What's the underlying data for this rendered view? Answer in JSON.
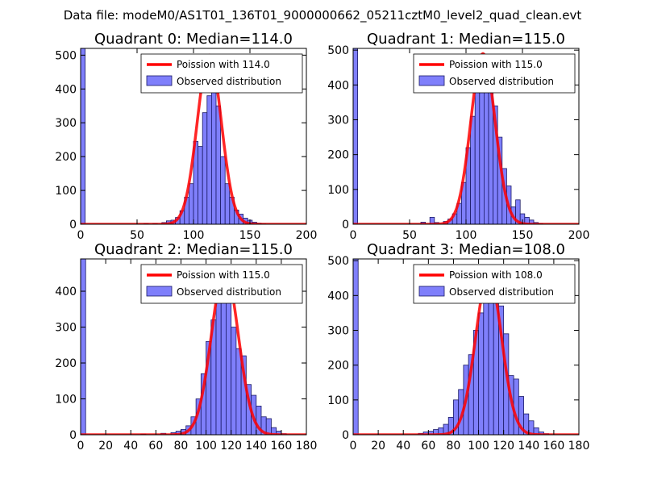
{
  "figure": {
    "suptitle": "Data file: modeM0/AS1T01_136T01_9000000662_05211cztM0_level2_quad_clean.evt"
  },
  "colors": {
    "bar_fill": "#7f7ffb",
    "bar_stroke": "#1a1a66",
    "curve": "#ff0000",
    "axis": "#000000"
  },
  "chart_data": [
    {
      "type": "bar",
      "title": "Quadrant 0: Median=114.0",
      "median": 114.0,
      "xlim": [
        0,
        200
      ],
      "ylim": [
        0,
        520
      ],
      "xticks": [
        0,
        50,
        100,
        150,
        200
      ],
      "yticks": [
        0,
        100,
        200,
        300,
        400,
        500
      ],
      "bin_width": 4,
      "bins": [
        0,
        56,
        64,
        72,
        76,
        80,
        84,
        88,
        92,
        96,
        100,
        104,
        108,
        112,
        116,
        120,
        124,
        128,
        132,
        136,
        140,
        144,
        148,
        152,
        156,
        160
      ],
      "counts": [
        520,
        2,
        2,
        5,
        10,
        12,
        20,
        40,
        80,
        120,
        245,
        230,
        330,
        380,
        460,
        350,
        200,
        120,
        80,
        42,
        30,
        18,
        12,
        6,
        3,
        1
      ],
      "legend": [
        "Poission with 114.0",
        "Observed distribution"
      ],
      "curve_label": "Poission with 114.0",
      "curve_peak": 500
    },
    {
      "type": "bar",
      "title": "Quadrant 1: Median=115.0",
      "median": 115.0,
      "xlim": [
        0,
        200
      ],
      "ylim": [
        0,
        505
      ],
      "xticks": [
        0,
        50,
        100,
        150,
        200
      ],
      "yticks": [
        0,
        100,
        200,
        300,
        400,
        500
      ],
      "bin_width": 4,
      "bins": [
        0,
        60,
        68,
        72,
        80,
        84,
        88,
        92,
        96,
        100,
        104,
        108,
        112,
        116,
        120,
        124,
        128,
        132,
        136,
        140,
        144,
        148,
        152,
        156,
        160,
        164
      ],
      "counts": [
        505,
        6,
        20,
        5,
        8,
        15,
        30,
        60,
        120,
        220,
        310,
        380,
        410,
        450,
        470,
        340,
        250,
        160,
        110,
        50,
        70,
        30,
        20,
        12,
        5,
        2
      ],
      "legend": [
        "Poission with 115.0",
        "Observed distribution"
      ],
      "curve_label": "Poission with 115.0",
      "curve_peak": 490
    },
    {
      "type": "bar",
      "title": "Quadrant 2: Median=115.0",
      "median": 115.0,
      "xlim": [
        0,
        180
      ],
      "ylim": [
        0,
        490
      ],
      "xticks": [
        0,
        20,
        40,
        60,
        80,
        100,
        120,
        140,
        160,
        180
      ],
      "yticks": [
        0,
        100,
        200,
        300,
        400
      ],
      "bin_width": 4,
      "bins": [
        0,
        48,
        64,
        72,
        76,
        80,
        84,
        88,
        92,
        96,
        100,
        104,
        108,
        112,
        116,
        120,
        124,
        128,
        132,
        136,
        140,
        144,
        148,
        152,
        156,
        160
      ],
      "counts": [
        490,
        2,
        4,
        6,
        10,
        15,
        25,
        50,
        100,
        170,
        260,
        320,
        390,
        430,
        450,
        300,
        240,
        220,
        140,
        110,
        80,
        50,
        45,
        20,
        10,
        3
      ],
      "legend": [
        "Poission with 115.0",
        "Observed distribution"
      ],
      "curve_label": "Poission with 115.0",
      "curve_peak": 460
    },
    {
      "type": "bar",
      "title": "Quadrant 3: Median=108.0",
      "median": 108.0,
      "xlim": [
        0,
        180
      ],
      "ylim": [
        0,
        505
      ],
      "xticks": [
        0,
        20,
        40,
        60,
        80,
        100,
        120,
        140,
        160,
        180
      ],
      "yticks": [
        0,
        100,
        200,
        300,
        400,
        500
      ],
      "bin_width": 4,
      "bins": [
        0,
        52,
        56,
        60,
        64,
        68,
        72,
        76,
        80,
        84,
        88,
        92,
        96,
        100,
        104,
        108,
        112,
        116,
        120,
        124,
        128,
        132,
        136,
        140,
        144,
        148,
        152
      ],
      "counts": [
        505,
        4,
        8,
        10,
        15,
        20,
        30,
        50,
        100,
        130,
        200,
        230,
        300,
        350,
        400,
        420,
        390,
        370,
        290,
        170,
        160,
        110,
        60,
        40,
        20,
        8,
        3
      ],
      "legend": [
        "Poission with 108.0",
        "Observed distribution"
      ],
      "curve_label": "Poission with 108.0",
      "curve_peak": 460
    }
  ]
}
